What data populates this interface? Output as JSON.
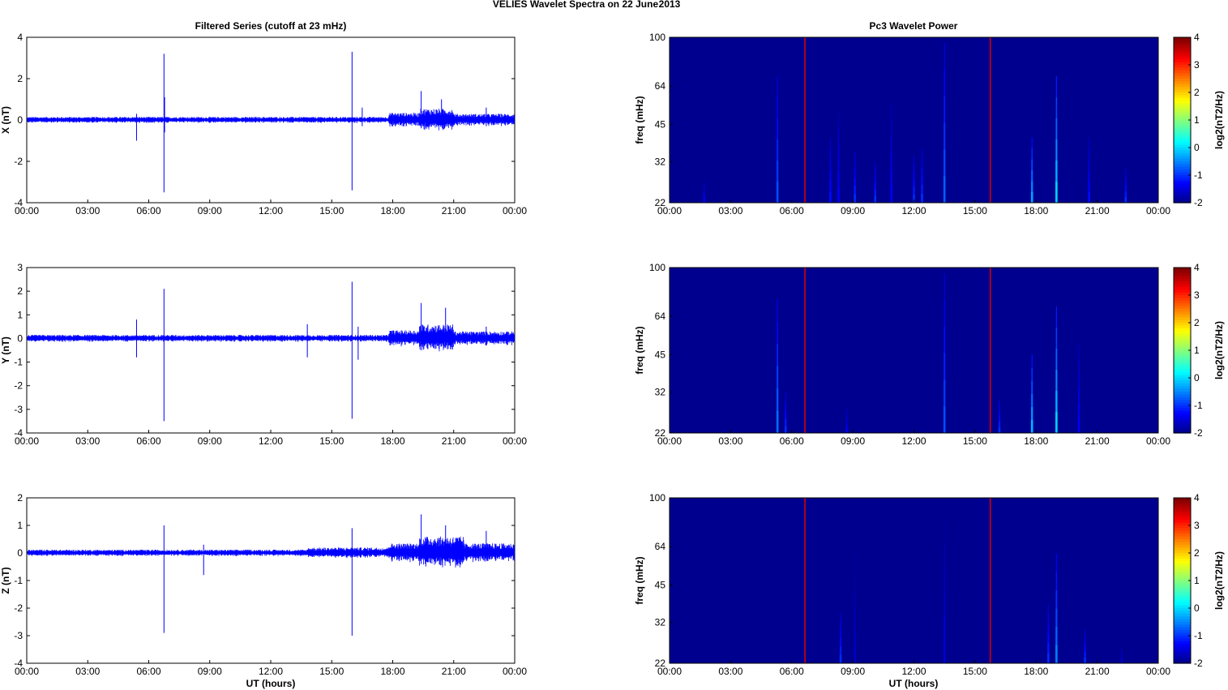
{
  "figure": {
    "title_left": "VELIES Wavelet Spectra on 22 June",
    "title_right": "2013",
    "left_title": "Filtered Series (cutoff at 23 mHz)",
    "right_title": "Pc3 Wavelet Power",
    "xlabel": "UT (hours)"
  },
  "colors": {
    "trace": "#0000ff",
    "background_power": "#00008f",
    "axis": "#000000"
  },
  "chart_data": [
    {
      "type": "line",
      "ylabel": "X (nT)",
      "ylim": [
        -4,
        4
      ],
      "yticks": [
        "4",
        "2",
        "0",
        "-2",
        "-4"
      ],
      "xlim": [
        0,
        24
      ],
      "xticks": [
        "00:00",
        "03:00",
        "06:00",
        "09:00",
        "12:00",
        "15:00",
        "18:00",
        "21:00",
        "00:00"
      ],
      "series": [
        {
          "values_spikes": [
            {
              "x": 5.4,
              "ymin": -1.0,
              "ymax": 0.3
            },
            {
              "x": 6.75,
              "ymin": -3.5,
              "ymax": 3.2
            },
            {
              "x": 6.78,
              "ymin": -0.6,
              "ymax": 1.1
            },
            {
              "x": 16.0,
              "ymin": -3.4,
              "ymax": 3.3
            },
            {
              "x": 16.5,
              "ymin": -0.3,
              "ymax": 0.6
            },
            {
              "x": 19.4,
              "ymin": -0.4,
              "ymax": 1.4
            },
            {
              "x": 20.4,
              "ymin": -0.3,
              "ymax": 1.0
            },
            {
              "x": 22.6,
              "ymin": -0.3,
              "ymax": 0.6
            }
          ],
          "noise_envelope": [
            {
              "x0": 0,
              "x1": 17.8,
              "amp": 0.15
            },
            {
              "x0": 17.8,
              "x1": 19.3,
              "amp": 0.35
            },
            {
              "x0": 19.3,
              "x1": 21.0,
              "amp": 0.55
            },
            {
              "x0": 21.0,
              "x1": 24,
              "amp": 0.3
            }
          ]
        }
      ]
    },
    {
      "type": "line",
      "ylabel": "Y (nT)",
      "ylim": [
        -4,
        3
      ],
      "yticks": [
        "3",
        "2",
        "1",
        "0",
        "-1",
        "-2",
        "-3",
        "-4"
      ],
      "xlim": [
        0,
        24
      ],
      "xticks": [
        "00:00",
        "03:00",
        "06:00",
        "09:00",
        "12:00",
        "15:00",
        "18:00",
        "21:00",
        "00:00"
      ],
      "series": [
        {
          "values_spikes": [
            {
              "x": 5.4,
              "ymin": -0.8,
              "ymax": 0.8
            },
            {
              "x": 6.75,
              "ymin": -3.5,
              "ymax": 2.1
            },
            {
              "x": 13.8,
              "ymin": -0.8,
              "ymax": 0.6
            },
            {
              "x": 16.0,
              "ymin": -3.4,
              "ymax": 2.4
            },
            {
              "x": 16.3,
              "ymin": -0.9,
              "ymax": 0.5
            },
            {
              "x": 19.4,
              "ymin": -0.5,
              "ymax": 1.5
            },
            {
              "x": 20.6,
              "ymin": -0.4,
              "ymax": 1.3
            },
            {
              "x": 22.6,
              "ymin": -0.3,
              "ymax": 0.5
            }
          ],
          "noise_envelope": [
            {
              "x0": 0,
              "x1": 17.8,
              "amp": 0.15
            },
            {
              "x0": 17.8,
              "x1": 19.3,
              "amp": 0.35
            },
            {
              "x0": 19.3,
              "x1": 21.0,
              "amp": 0.6
            },
            {
              "x0": 21.0,
              "x1": 24,
              "amp": 0.3
            }
          ]
        }
      ]
    },
    {
      "type": "line",
      "ylabel": "Z (nT)",
      "ylim": [
        -4,
        2
      ],
      "yticks": [
        "2",
        "1",
        "0",
        "-1",
        "-2",
        "-3",
        "-4"
      ],
      "xlim": [
        0,
        24
      ],
      "xticks": [
        "00:00",
        "03:00",
        "06:00",
        "09:00",
        "12:00",
        "15:00",
        "18:00",
        "21:00",
        "00:00"
      ],
      "series": [
        {
          "values_spikes": [
            {
              "x": 6.75,
              "ymin": -2.9,
              "ymax": 1.0
            },
            {
              "x": 8.7,
              "ymin": -0.8,
              "ymax": 0.3
            },
            {
              "x": 16.0,
              "ymin": -3.0,
              "ymax": 0.9
            },
            {
              "x": 19.4,
              "ymin": -0.4,
              "ymax": 1.4
            },
            {
              "x": 20.6,
              "ymin": -0.3,
              "ymax": 1.0
            },
            {
              "x": 22.6,
              "ymin": -0.3,
              "ymax": 0.8
            }
          ],
          "noise_envelope": [
            {
              "x0": 0,
              "x1": 13.8,
              "amp": 0.12
            },
            {
              "x0": 13.8,
              "x1": 17.8,
              "amp": 0.2
            },
            {
              "x0": 17.8,
              "x1": 19.3,
              "amp": 0.35
            },
            {
              "x0": 19.3,
              "x1": 21.5,
              "amp": 0.6
            },
            {
              "x0": 21.5,
              "x1": 24,
              "amp": 0.35
            }
          ]
        }
      ]
    },
    {
      "type": "heatmap",
      "ylabel": "freq (mHz)",
      "yticks": [
        "100",
        "64",
        "45",
        "32",
        "22"
      ],
      "xticks": [
        "00:00",
        "03:00",
        "06:00",
        "09:00",
        "12:00",
        "15:00",
        "18:00",
        "21:00",
        "00:00"
      ],
      "colorbar_label": "log2(nT2/Hz)",
      "colorbar_ticks": [
        "4",
        "3",
        "2",
        "1",
        "0",
        "-1",
        "-2"
      ],
      "clim": [
        -2,
        4
      ],
      "events": [
        {
          "t": 1.7,
          "fmax": 27,
          "level": -1.3
        },
        {
          "t": 5.3,
          "fmax": 70,
          "level": -0.8
        },
        {
          "t": 6.65,
          "fmax": 100,
          "level": 3.5
        },
        {
          "t": 7.9,
          "fmax": 40,
          "level": -1.2
        },
        {
          "t": 8.3,
          "fmax": 50,
          "level": -1.3
        },
        {
          "t": 9.1,
          "fmax": 35,
          "level": -1.0
        },
        {
          "t": 10.1,
          "fmax": 32,
          "level": -1.0
        },
        {
          "t": 10.9,
          "fmax": 55,
          "level": -1.3
        },
        {
          "t": 12.0,
          "fmax": 34,
          "level": -1.0
        },
        {
          "t": 12.4,
          "fmax": 36,
          "level": -1.0
        },
        {
          "t": 13.5,
          "fmax": 95,
          "level": -0.7
        },
        {
          "t": 15.75,
          "fmax": 100,
          "level": 3.5
        },
        {
          "t": 17.8,
          "fmax": 40,
          "level": -0.3
        },
        {
          "t": 19.0,
          "fmax": 70,
          "level": 0.0
        },
        {
          "t": 20.6,
          "fmax": 40,
          "level": -1.2
        },
        {
          "t": 22.4,
          "fmax": 30,
          "level": -1.0
        }
      ]
    },
    {
      "type": "heatmap",
      "ylabel": "freq (mHz)",
      "yticks": [
        "100",
        "64",
        "45",
        "32",
        "22"
      ],
      "xticks": [
        "00:00",
        "03:00",
        "06:00",
        "09:00",
        "12:00",
        "15:00",
        "18:00",
        "21:00",
        "00:00"
      ],
      "colorbar_label": "log2(nT2/Hz)",
      "colorbar_ticks": [
        "4",
        "3",
        "2",
        "1",
        "0",
        "-1",
        "-2"
      ],
      "clim": [
        -2,
        4
      ],
      "events": [
        {
          "t": 5.3,
          "fmax": 75,
          "level": -0.6
        },
        {
          "t": 5.7,
          "fmax": 32,
          "level": -1.0
        },
        {
          "t": 6.65,
          "fmax": 100,
          "level": 3.5
        },
        {
          "t": 8.7,
          "fmax": 28,
          "level": -1.4
        },
        {
          "t": 13.5,
          "fmax": 95,
          "level": -0.8
        },
        {
          "t": 15.75,
          "fmax": 100,
          "level": 3.5
        },
        {
          "t": 16.2,
          "fmax": 30,
          "level": -1.0
        },
        {
          "t": 17.8,
          "fmax": 45,
          "level": -0.2
        },
        {
          "t": 19.0,
          "fmax": 70,
          "level": 0.0
        },
        {
          "t": 20.1,
          "fmax": 50,
          "level": -1.3
        }
      ]
    },
    {
      "type": "heatmap",
      "ylabel": "freq (mHz)",
      "yticks": [
        "100",
        "64",
        "45",
        "32",
        "22"
      ],
      "xticks": [
        "00:00",
        "03:00",
        "06:00",
        "09:00",
        "12:00",
        "15:00",
        "18:00",
        "21:00",
        "00:00"
      ],
      "colorbar_label": "log2(nT2/Hz)",
      "colorbar_ticks": [
        "4",
        "3",
        "2",
        "1",
        "0",
        "-1",
        "-2"
      ],
      "clim": [
        -2,
        4
      ],
      "events": [
        {
          "t": 6.65,
          "fmax": 100,
          "level": 3.5
        },
        {
          "t": 8.4,
          "fmax": 35,
          "level": -1.0
        },
        {
          "t": 9.1,
          "fmax": 60,
          "level": -1.6
        },
        {
          "t": 13.5,
          "fmax": 80,
          "level": -1.5
        },
        {
          "t": 15.75,
          "fmax": 100,
          "level": 3.5
        },
        {
          "t": 18.6,
          "fmax": 38,
          "level": -1.0
        },
        {
          "t": 19.0,
          "fmax": 60,
          "level": -0.5
        },
        {
          "t": 20.4,
          "fmax": 30,
          "level": -1.0
        },
        {
          "t": 22.2,
          "fmax": 26,
          "level": -1.6
        }
      ]
    }
  ]
}
